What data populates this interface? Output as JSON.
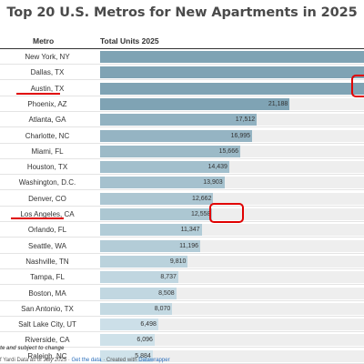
{
  "chart_data": {
    "type": "bar",
    "title": "Top 20 U.S. Metros for New Apartments in 2025",
    "columns": [
      "Metro",
      "Total Units 2025"
    ],
    "categories": [
      "New York, NY",
      "Dallas, TX",
      "Austin, TX",
      "Phoenix, AZ",
      "Atlanta, GA",
      "Charlotte, NC",
      "Miami, FL",
      "Houston, TX",
      "Washington, D.C.",
      "Denver, CO",
      "Los Angeles, CA",
      "Orlando, FL",
      "Seattle, WA",
      "Nashville, TN",
      "Tampa, FL",
      "Boston, MA",
      "San Antonio, TX",
      "Salt Lake City, UT",
      "Riverside, CA",
      "Raleigh, NC"
    ],
    "values": [
      null,
      null,
      null,
      21188,
      17512,
      16995,
      15666,
      14439,
      13903,
      12662,
      12558,
      11347,
      11196,
      9810,
      8737,
      8508,
      8070,
      6498,
      6096,
      5884
    ],
    "labels": [
      "",
      "",
      "",
      "21,188",
      "17,512",
      "16,995",
      "15,666",
      "14,439",
      "13,903",
      "12,662",
      "12,558",
      "11,347",
      "11,196",
      "9,810",
      "8,737",
      "8,508",
      "8,070",
      "6,498",
      "6,096",
      "5,884"
    ],
    "x_range": [
      0,
      29500
    ]
  },
  "annotations": {
    "underlined_metros": [
      "Austin, TX",
      "Los Angeles, CA"
    ],
    "circled_values": [
      "Austin, TX",
      "Los Angeles, CA"
    ],
    "color": "#e00000"
  },
  "footer": {
    "note": "te and subject to change",
    "source_prefix": "f Yardi Data as of July 2025 · ",
    "get_data": "Get the data",
    "created_with": " · Created with ",
    "datawrapper": "Datawrapper"
  },
  "colors": {
    "bar_dark": "#7fa3b4",
    "bar_light": "#cfe2ea",
    "track": "#eeeeee"
  }
}
